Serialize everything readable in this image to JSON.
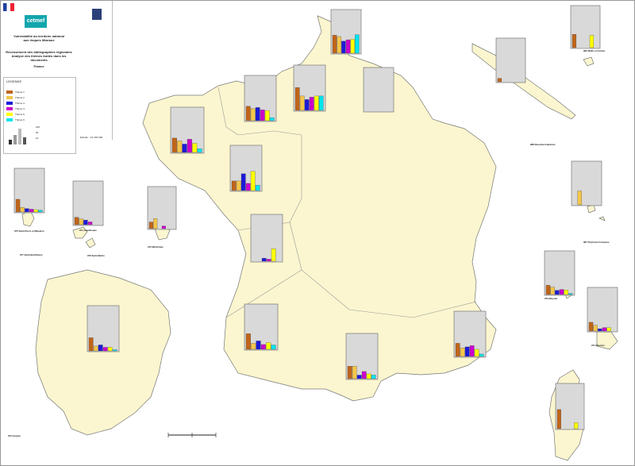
{
  "header": {
    "org_name": "cetmef",
    "title_l1": "Vulnérabilité du territoire national",
    "title_l2": "aux risques littoraux",
    "subtitle_l1": "Recensement des bibliographies régionales",
    "subtitle_l2": "Analyse des thèmes traités dans les documents",
    "region": "France",
    "scale_text": "Echelle : 1/1 000 000"
  },
  "legend": {
    "title": "LEGENDE",
    "theme_items": [
      {
        "color": "#c0651a",
        "label": "Thème 1"
      },
      {
        "color": "#f4c64a",
        "label": "Thème 2"
      },
      {
        "color": "#1d1ad8",
        "label": "Thème 3"
      },
      {
        "color": "#cc00cc",
        "label": "Thème 4"
      },
      {
        "color": "#ffff00",
        "label": "Thème 5"
      },
      {
        "color": "#00e5ee",
        "label": "Thème 6"
      }
    ],
    "count_items": [
      "100",
      "50",
      "10"
    ]
  },
  "colors": {
    "land": "#fbf6cf",
    "coast": "#777777",
    "chart_bg": "#d9d9d9",
    "t1": "#c0651a",
    "t2": "#f4c64a",
    "t3": "#1d1ad8",
    "t4": "#cc00cc",
    "t5": "#ffff00",
    "t6": "#00e5ee"
  },
  "territory_labels": [
    "973-Guyane",
    "975-Saint-Pierre et Miquelon",
    "977-Saint-Barthélemy",
    "978-Saint-Martin",
    "971-Guadeloupe",
    "972-Martinique",
    "988-Nouvelle-Calédonie",
    "986-Wallis et Futuna",
    "987-Polynésie Française",
    "976-Mayotte",
    "974-Réunion"
  ],
  "chart_data": {
    "type": "bar",
    "categories": [
      "T1",
      "T2",
      "T3",
      "T4",
      "T5",
      "T6"
    ],
    "ylim": [
      0,
      100
    ],
    "charts": [
      {
        "id": "nord",
        "values": [
          78,
          72,
          52,
          58,
          60,
          80
        ]
      },
      {
        "id": "haute-norm",
        "values": [
          95,
          60,
          45,
          55,
          60,
          60
        ]
      },
      {
        "id": "picardie",
        "values": [
          0,
          0,
          0,
          0,
          0,
          0
        ]
      },
      {
        "id": "basse-norm",
        "values": [
          60,
          50,
          55,
          45,
          42,
          12
        ]
      },
      {
        "id": "bretagne",
        "values": [
          60,
          48,
          35,
          55,
          38,
          15
        ]
      },
      {
        "id": "pays-loire",
        "values": [
          40,
          40,
          70,
          30,
          80,
          22
        ]
      },
      {
        "id": "poitou",
        "values": [
          0,
          0,
          12,
          8,
          50,
          0
        ]
      },
      {
        "id": "aquitaine",
        "values": [
          65,
          25,
          35,
          20,
          28,
          18
        ]
      },
      {
        "id": "languedoc",
        "values": [
          52,
          52,
          15,
          30,
          20,
          15
        ]
      },
      {
        "id": "paca",
        "values": [
          55,
          35,
          40,
          45,
          30,
          10
        ]
      },
      {
        "id": "corse",
        "values": [
          80,
          0,
          0,
          0,
          25,
          0
        ]
      },
      {
        "id": "guyane",
        "values": [
          55,
          20,
          25,
          15,
          15,
          5
        ]
      },
      {
        "id": "spm",
        "values": [
          55,
          20,
          15,
          12,
          10,
          8
        ]
      },
      {
        "id": "guadeloupe",
        "values": [
          32,
          25,
          20,
          12,
          0,
          0
        ]
      },
      {
        "id": "martinique",
        "values": [
          30,
          45,
          0,
          12,
          0,
          0
        ]
      },
      {
        "id": "nouv-cal",
        "values": [
          15,
          0,
          0,
          0,
          0,
          0
        ]
      },
      {
        "id": "wallis",
        "values": [
          60,
          0,
          0,
          0,
          55,
          0
        ]
      },
      {
        "id": "polynesie",
        "values": [
          0,
          60,
          0,
          0,
          0,
          0
        ]
      },
      {
        "id": "mayotte",
        "values": [
          40,
          32,
          18,
          22,
          20,
          5
        ]
      },
      {
        "id": "reunion",
        "values": [
          38,
          25,
          10,
          15,
          15,
          0
        ]
      }
    ]
  }
}
